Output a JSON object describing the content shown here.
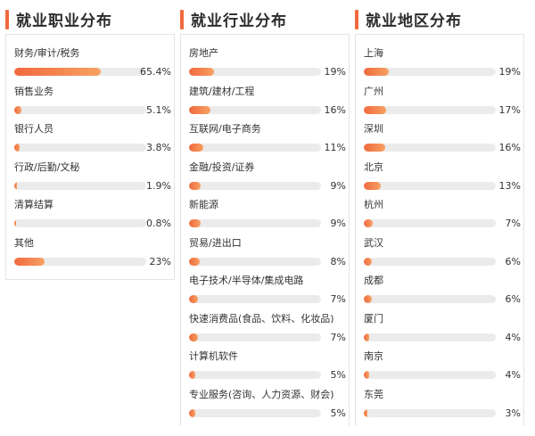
{
  "columns": [
    {
      "title": "就业职业分布",
      "items": [
        {
          "label": "财务/审计/税务",
          "value_text": "65.4%",
          "pct": 65.4
        },
        {
          "label": "销售业务",
          "value_text": "5.1%",
          "pct": 5.1
        },
        {
          "label": "银行人员",
          "value_text": "3.8%",
          "pct": 3.8
        },
        {
          "label": "行政/后勤/文秘",
          "value_text": "1.9%",
          "pct": 1.9
        },
        {
          "label": "清算结算",
          "value_text": "0.8%",
          "pct": 0.8
        },
        {
          "label": "其他",
          "value_text": "23%",
          "pct": 23
        }
      ]
    },
    {
      "title": "就业行业分布",
      "items": [
        {
          "label": "房地产",
          "value_text": "19%",
          "pct": 19
        },
        {
          "label": "建筑/建材/工程",
          "value_text": "16%",
          "pct": 16
        },
        {
          "label": "互联网/电子商务",
          "value_text": "11%",
          "pct": 11
        },
        {
          "label": "金融/投资/证券",
          "value_text": "9%",
          "pct": 9
        },
        {
          "label": "新能源",
          "value_text": "9%",
          "pct": 9
        },
        {
          "label": "贸易/进出口",
          "value_text": "8%",
          "pct": 8
        },
        {
          "label": "电子技术/半导体/集成电路",
          "value_text": "7%",
          "pct": 7
        },
        {
          "label": "快速消费品(食品、饮料、化妆品)",
          "value_text": "7%",
          "pct": 7
        },
        {
          "label": "计算机软件",
          "value_text": "5%",
          "pct": 5
        },
        {
          "label": "专业服务(咨询、人力资源、财会)",
          "value_text": "5%",
          "pct": 5
        }
      ]
    },
    {
      "title": "就业地区分布",
      "items": [
        {
          "label": "上海",
          "value_text": "19%",
          "pct": 19
        },
        {
          "label": "广州",
          "value_text": "17%",
          "pct": 17
        },
        {
          "label": "深圳",
          "value_text": "16%",
          "pct": 16
        },
        {
          "label": "北京",
          "value_text": "13%",
          "pct": 13
        },
        {
          "label": "杭州",
          "value_text": "7%",
          "pct": 7
        },
        {
          "label": "武汉",
          "value_text": "6%",
          "pct": 6
        },
        {
          "label": "成都",
          "value_text": "6%",
          "pct": 6
        },
        {
          "label": "厦门",
          "value_text": "4%",
          "pct": 4
        },
        {
          "label": "南京",
          "value_text": "4%",
          "pct": 4
        },
        {
          "label": "东莞",
          "value_text": "3%",
          "pct": 3
        }
      ]
    }
  ]
}
